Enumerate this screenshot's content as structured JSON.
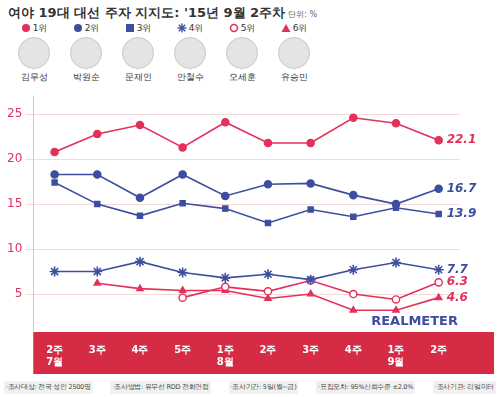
{
  "chart_data": {
    "type": "line",
    "title": "여야 19대 대선 주자 지지도: '15년 9월 2주차",
    "unit_label": "단위: %",
    "categories": [
      [
        "2주",
        "7월"
      ],
      "3주",
      "4주",
      "5주",
      [
        "1주",
        "8월"
      ],
      "2주",
      "3주",
      "4주",
      [
        "1주",
        "9월"
      ],
      "2주"
    ],
    "series": [
      {
        "name": "1위",
        "color": "#e2315a",
        "marker": "circle",
        "values": [
          20.8,
          22.8,
          23.8,
          21.3,
          24.1,
          21.8,
          21.8,
          24.6,
          24.0,
          22.1
        ]
      },
      {
        "name": "2위",
        "color": "#3d4ea0",
        "marker": "circle",
        "values": [
          18.3,
          18.3,
          15.7,
          18.3,
          15.9,
          17.2,
          17.3,
          16.0,
          15.0,
          16.7
        ]
      },
      {
        "name": "3위",
        "color": "#3d4ea0",
        "marker": "square",
        "values": [
          17.4,
          15.0,
          13.7,
          15.1,
          14.5,
          12.9,
          14.4,
          13.6,
          14.6,
          13.9
        ]
      },
      {
        "name": "4위",
        "color": "#3d4ea0",
        "marker": "asterisk",
        "values": [
          7.5,
          7.5,
          8.6,
          7.4,
          6.8,
          7.2,
          6.6,
          7.7,
          8.5,
          7.7
        ]
      },
      {
        "name": "5위",
        "color": "#e2315a",
        "marker": "open_circle",
        "values": [
          null,
          null,
          null,
          4.6,
          5.8,
          5.3,
          6.5,
          5.0,
          4.4,
          6.3
        ]
      },
      {
        "name": "6위",
        "color": "#e2315a",
        "marker": "triangle",
        "values": [
          null,
          6.2,
          5.6,
          5.4,
          5.4,
          4.5,
          5.0,
          3.2,
          3.2,
          4.6
        ]
      }
    ],
    "candidates": [
      "김무성",
      "박원순",
      "문재인",
      "안철수",
      "오세훈",
      "유승민"
    ],
    "ylim": [
      1,
      27
    ],
    "yticks": [
      5,
      10,
      15,
      20,
      25
    ],
    "grid": true,
    "legend": "top",
    "annotation": "REALMETER",
    "notes": [
      "·조사대상: 전국 성인 2500명",
      "·조사방법: 유무선 RDD 전화면접",
      "·조사기간: 5일(월~금)",
      "·표집오차: 95%신뢰수준 ±2.0%",
      "·조사기관: 리얼미터"
    ]
  }
}
